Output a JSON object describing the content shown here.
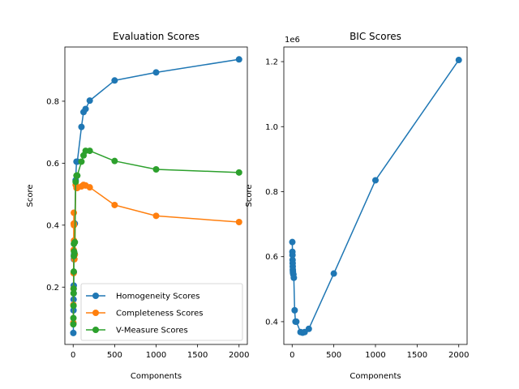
{
  "chart_data": [
    {
      "type": "line",
      "title": "Evaluation Scores",
      "xlabel": "Components",
      "ylabel": "Score",
      "xlim": [
        -100,
        2100
      ],
      "ylim": [
        0.015,
        0.975
      ],
      "xticks": [
        0,
        500,
        1000,
        1500,
        2000
      ],
      "yticks": [
        0.2,
        0.4,
        0.6,
        0.8
      ],
      "legend": "lower-right",
      "grid": false,
      "x": [
        2,
        3,
        4,
        5,
        6,
        7,
        8,
        9,
        10,
        15,
        20,
        30,
        40,
        50,
        100,
        125,
        150,
        200,
        500,
        1000,
        2000
      ],
      "series": [
        {
          "name": "Homogeneity Scores",
          "color": "#1f77b4",
          "values": [
            0.052,
            0.083,
            0.125,
            0.16,
            0.18,
            0.205,
            0.248,
            0.29,
            0.305,
            0.345,
            0.405,
            0.545,
            0.605,
            0.605,
            0.717,
            0.765,
            0.775,
            0.802,
            0.867,
            0.893,
            0.935
          ]
        },
        {
          "name": "Completeness Scores",
          "color": "#ff7f0e",
          "values": [
            0.085,
            0.143,
            0.195,
            0.245,
            0.32,
            0.405,
            0.44,
            0.4,
            0.35,
            0.29,
            0.305,
            0.53,
            0.52,
            0.52,
            0.525,
            0.53,
            0.528,
            0.522,
            0.465,
            0.43,
            0.41
          ]
        },
        {
          "name": "V-Measure Scores",
          "color": "#2ca02c",
          "values": [
            0.08,
            0.1,
            0.14,
            0.18,
            0.195,
            0.25,
            0.3,
            0.34,
            0.315,
            0.31,
            0.345,
            0.54,
            0.56,
            0.56,
            0.605,
            0.625,
            0.64,
            0.64,
            0.607,
            0.58,
            0.57
          ]
        }
      ]
    },
    {
      "type": "line",
      "title": "BIC Scores",
      "xlabel": "Components",
      "ylabel": "Score",
      "offset_text": "1e6",
      "xlim": [
        -100,
        2100
      ],
      "ylim": [
        0.33,
        1.245
      ],
      "xticks": [
        0,
        500,
        1000,
        1500,
        2000
      ],
      "yticks": [
        0.4,
        0.6,
        0.8,
        1.0,
        1.2
      ],
      "ytick_labels": [
        "0.4",
        "0.6",
        "0.8",
        "1.0",
        "1.2"
      ],
      "grid": false,
      "x": [
        2,
        3,
        4,
        5,
        6,
        7,
        8,
        9,
        10,
        15,
        20,
        30,
        40,
        50,
        100,
        125,
        150,
        200,
        500,
        1000,
        2000
      ],
      "series": [
        {
          "color": "#1f77b4",
          "values": [
            0.645,
            0.615,
            0.605,
            0.59,
            0.58,
            0.57,
            0.56,
            0.555,
            0.55,
            0.545,
            0.535,
            0.435,
            0.4,
            0.4,
            0.368,
            0.366,
            0.368,
            0.378,
            0.548,
            0.835,
            1.205
          ]
        }
      ]
    }
  ]
}
